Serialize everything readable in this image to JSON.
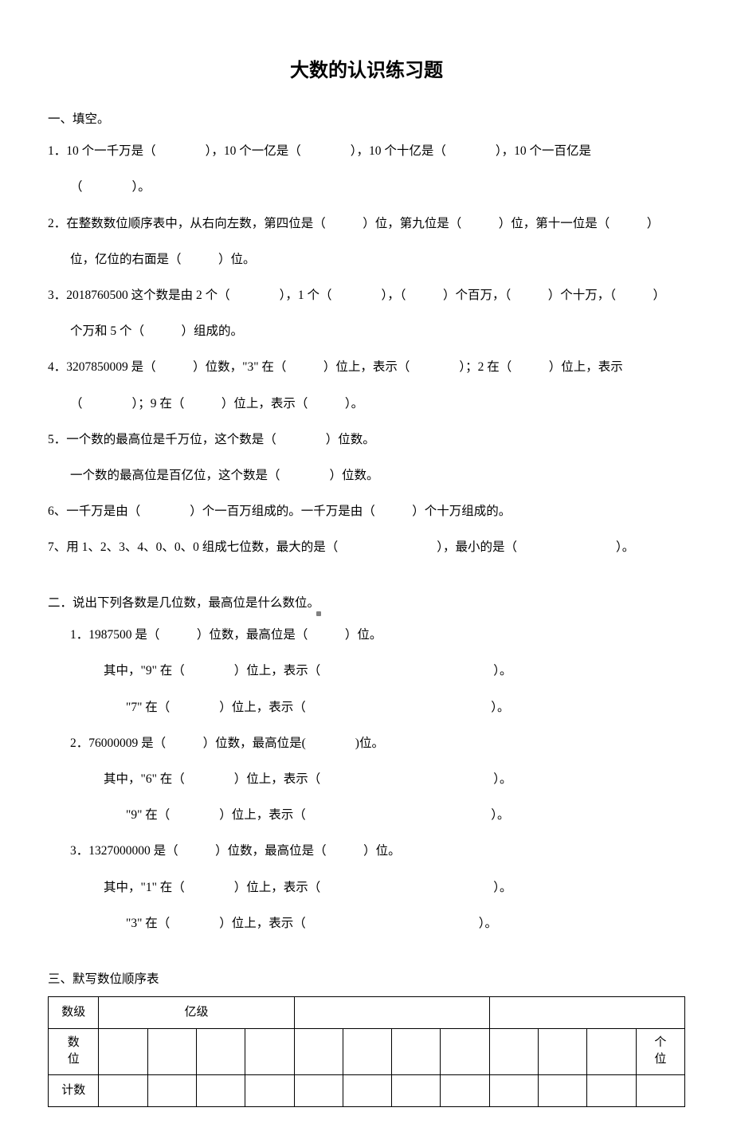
{
  "title": "大数的认识练习题",
  "section1": {
    "heading": "一、填空。",
    "q1": "1．10 个一千万是（　　　　），10 个一亿是（　　　　），10 个十亿是（　　　　），10 个一百亿是",
    "q1b": "（　　　　）。",
    "q2": "2．在整数数位顺序表中，从右向左数，第四位是（　　　）位，第九位是（　　　）位，第十一位是（　　　）",
    "q2b": "位，亿位的右面是（　　　）位。",
    "q3": "3．2018760500 这个数是由 2 个（　　　　），1 个（　　　　），（　　　）个百万，（　　　）个十万，（　　　）",
    "q3b": "个万和 5 个（　　　）组成的。",
    "q4": "4．3207850009 是（　　　）位数，\"3\" 在（　　　）位上，表示（　　　　）；2 在（　　　）位上，表示",
    "q4b": "（　　　　）；9 在（　　　）位上，表示（　　　）。",
    "q5a": "5．一个数的最高位是千万位，这个数是（　　　　）位数。",
    "q5b": "一个数的最高位是百亿位，这个数是（　　　　）位数。",
    "q6": "6、一千万是由（　　　　）个一百万组成的。一千万是由（　　　）个十万组成的。",
    "q7": "7、用 1、2、3、4、0、0、0 组成七位数，最大的是（　　　　　　　　），最小的是（　　　　　　　　）。"
  },
  "section2": {
    "heading": "二．说出下列各数是几位数，最高位是什么数位。",
    "q1": "1．1987500 是（　　　）位数，最高位是（　　　）位。",
    "q1a": "其中，\"9\" 在（　　　　）位上，表示（　　　　　　　　　　　　　　）。",
    "q1b": "\"7\" 在（　　　　）位上，表示（　　　　　　　　　　　　　　　）。",
    "q2": "2．76000009 是（　　　）位数，最高位是(　　　　)位。",
    "q2a": "其中，\"6\" 在（　　　　）位上，表示（　　　　　　　　　　　　　　）。",
    "q2b": "\"9\" 在（　　　　）位上，表示（　　　　　　　　　　　　　　　）。",
    "q3": "3．1327000000 是（　　　）位数，最高位是（　　　）位。",
    "q3a": "其中，\"1\" 在（　　　　）位上，表示（　　　　　　　　　　　　　　）。",
    "q3b": "\"3\" 在（　　　　）位上，表示（　　　　　　　　　　　　　　）。"
  },
  "section3": {
    "heading": "三、默写数位顺序表",
    "table": {
      "row1_label": "数级",
      "row1_group1": "亿级",
      "row2_label": "数\n位",
      "row2_last": "个\n位",
      "row3_label": "计数"
    }
  },
  "styles": {
    "background_color": "#ffffff",
    "text_color": "#000000",
    "title_fontsize": 24,
    "body_fontsize": 15.5,
    "font_family_title": "SimHei",
    "font_family_body": "SimSun",
    "table_border_color": "#000000"
  }
}
